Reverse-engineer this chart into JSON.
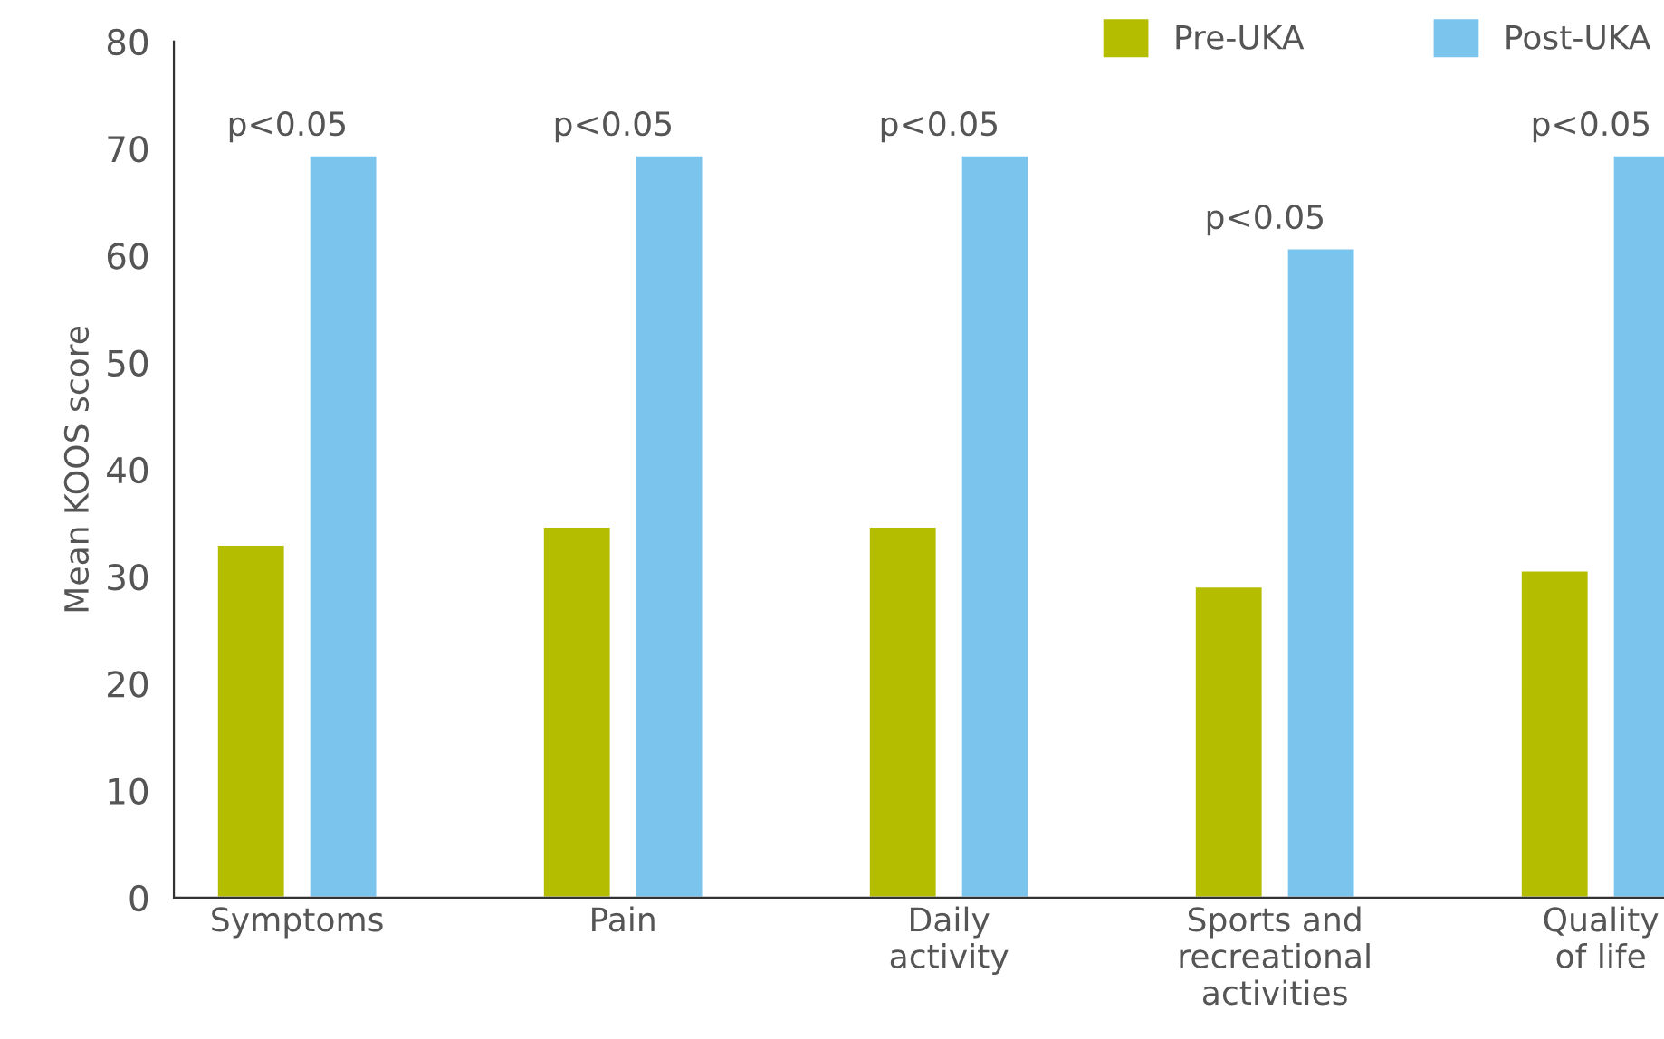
{
  "chart_data": {
    "type": "bar",
    "ylabel": "Mean KOOS score",
    "categories": [
      "Symptoms",
      "Pain",
      "Daily\nactivity",
      "Sports and\nrecreational\nactivities",
      "Quality\nof life"
    ],
    "series": [
      {
        "name": "Pre-UKA",
        "color": "#b5bd00",
        "values": [
          33.0,
          34.7,
          34.7,
          29.1,
          30.6
        ]
      },
      {
        "name": "Post-UKA",
        "color": "#7bc4ed",
        "values": [
          69.4,
          69.4,
          69.4,
          60.7,
          69.4
        ]
      }
    ],
    "ylim": [
      0,
      80
    ],
    "yticks": [
      0,
      10,
      20,
      30,
      40,
      50,
      60,
      70,
      80
    ],
    "grid": false,
    "legend": "top right",
    "annotations": [
      "p<0.05",
      "p<0.05",
      "p<0.05",
      "p<0.05",
      "p<0.05"
    ]
  }
}
